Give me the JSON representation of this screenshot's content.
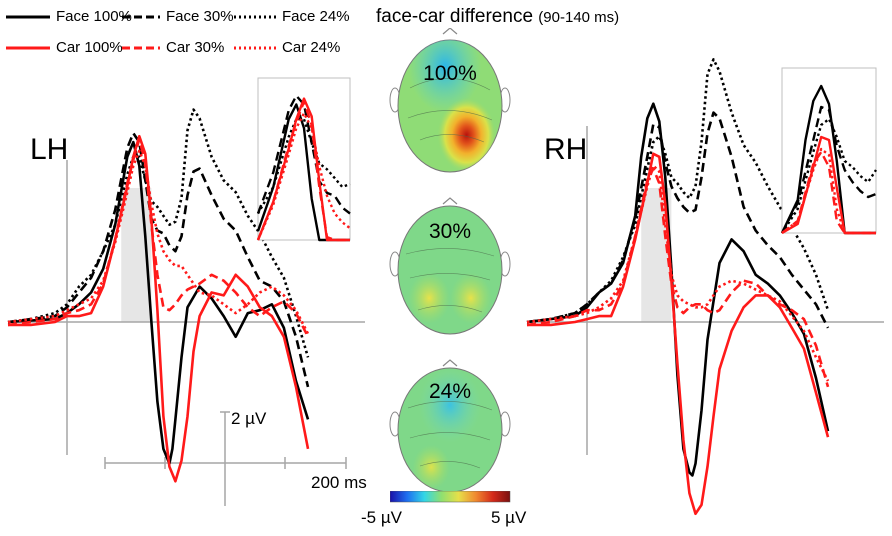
{
  "chart_data": {
    "type": "line",
    "title": "face-car difference",
    "title_window": "(90-140 ms)",
    "legend": [
      {
        "label": "Face 100%",
        "color": "#000000",
        "dash": "solid"
      },
      {
        "label": "Face 30%",
        "color": "#000000",
        "dash": "dashed"
      },
      {
        "label": "Face 24%",
        "color": "#000000",
        "dash": "dotted"
      },
      {
        "label": "Car 100%",
        "color": "#ff1a1a",
        "dash": "solid"
      },
      {
        "label": "Car 30%",
        "color": "#ff1a1a",
        "dash": "dashed"
      },
      {
        "label": "Car 24%",
        "color": "#ff1a1a",
        "dash": "dotted"
      }
    ],
    "scale_bar": {
      "amplitude_label": "2 µV",
      "time_label": "200 ms",
      "amplitude_uv": 2,
      "time_ms": 200
    },
    "x_range_ms": [
      -100,
      400
    ],
    "y_range_uv": [
      -6,
      7.4
    ],
    "highlight_window_ms": [
      90,
      140
    ],
    "panels": [
      {
        "hemisphere": "LH",
        "series": [
          {
            "name": "Face 100%",
            "x": [
              -100,
              -60,
              -20,
              0,
              20,
              40,
              60,
              80,
              100,
              110,
              120,
              130,
              140,
              150,
              160,
              170,
              175,
              180,
              190,
              200,
              220,
              240,
              260,
              280,
              300,
              320,
              340,
              360,
              380,
              400
            ],
            "y": [
              0,
              0.05,
              0.1,
              0.3,
              0.6,
              1,
              1.8,
              3.3,
              5.6,
              6.1,
              5.3,
              2.9,
              0,
              -2.7,
              -4.3,
              -4.8,
              -4.3,
              -3.3,
              -1.2,
              0.5,
              1.2,
              0.8,
              0.2,
              -0.5,
              0.3,
              0.4,
              0.6,
              -0.2,
              -2,
              -3.3
            ]
          },
          {
            "name": "Face 30%",
            "x": [
              -100,
              -60,
              -20,
              0,
              20,
              40,
              60,
              80,
              100,
              110,
              120,
              130,
              140,
              150,
              160,
              170,
              180,
              190,
              200,
              210,
              220,
              240,
              260,
              280,
              300,
              320,
              340,
              360,
              380,
              400
            ],
            "y": [
              0,
              0.1,
              0.2,
              0.5,
              1,
              1.5,
              2.4,
              3.8,
              5.9,
              6.4,
              6.1,
              4.8,
              3.5,
              3.1,
              3,
              2.6,
              2.4,
              2.9,
              4.3,
              5.1,
              5.2,
              4.3,
              3.5,
              3.1,
              2.2,
              1.4,
              1.2,
              0.7,
              -0.5,
              -2.2
            ]
          },
          {
            "name": "Face 24%",
            "x": [
              -100,
              -60,
              -20,
              0,
              20,
              40,
              60,
              80,
              100,
              110,
              120,
              130,
              140,
              150,
              160,
              170,
              180,
              190,
              200,
              210,
              220,
              240,
              260,
              280,
              300,
              320,
              340,
              360,
              380,
              400
            ],
            "y": [
              0,
              0.1,
              0.3,
              0.6,
              1.2,
              1.6,
              2.4,
              3.3,
              5,
              5.6,
              5.6,
              4.8,
              4.1,
              3.9,
              3.6,
              3.3,
              3.4,
              4.2,
              6.5,
              7.2,
              6.9,
              5.6,
              4.8,
              4.4,
              3.6,
              3,
              2.2,
              1.5,
              0.2,
              -1.2
            ]
          },
          {
            "name": "Car 100%",
            "x": [
              -100,
              -60,
              -20,
              0,
              20,
              40,
              60,
              80,
              100,
              110,
              120,
              130,
              140,
              150,
              160,
              170,
              180,
              190,
              200,
              210,
              220,
              240,
              260,
              280,
              300,
              320,
              340,
              360,
              380,
              400
            ],
            "y": [
              -0.1,
              -0.1,
              0,
              0.2,
              0.2,
              0.3,
              1.2,
              2.8,
              4.6,
              5.6,
              6.3,
              5.7,
              3.5,
              0.4,
              -3.2,
              -4.9,
              -5.4,
              -4.7,
              -3.2,
              -1,
              0.2,
              1,
              0.9,
              1.6,
              1.2,
              0.5,
              0.2,
              -0.5,
              -2.2,
              -4.3
            ]
          },
          {
            "name": "Car 30%",
            "x": [
              -100,
              -60,
              -20,
              0,
              20,
              40,
              60,
              80,
              100,
              110,
              120,
              130,
              140,
              150,
              160,
              170,
              180,
              190,
              200,
              210,
              220,
              240,
              260,
              280,
              300,
              320,
              340,
              360,
              380,
              400
            ],
            "y": [
              -0.1,
              0,
              0.1,
              0.3,
              0.4,
              0.6,
              1.3,
              2.8,
              4.7,
              5.5,
              6.2,
              5.4,
              3.3,
              1.6,
              0.5,
              0.4,
              0.6,
              0.9,
              1.1,
              1.2,
              1.3,
              1.6,
              1.4,
              1,
              0.5,
              0.2,
              0.5,
              0.7,
              0.3,
              -0.5
            ]
          },
          {
            "name": "Car 24%",
            "x": [
              -100,
              -60,
              -20,
              0,
              20,
              40,
              60,
              80,
              100,
              110,
              120,
              130,
              140,
              150,
              160,
              170,
              180,
              190,
              200,
              210,
              220,
              240,
              260,
              280,
              300,
              320,
              340,
              360,
              380,
              400
            ],
            "y": [
              0,
              0.1,
              0.2,
              0.4,
              0.6,
              0.8,
              1.4,
              2.7,
              4.4,
              5.3,
              5.8,
              5.3,
              4,
              3,
              2.4,
              2.1,
              1.9,
              1.9,
              1.6,
              1.3,
              1,
              0.9,
              0.6,
              0.3,
              0.6,
              1,
              1.2,
              0.9,
              0.4,
              -0.4
            ]
          }
        ]
      },
      {
        "hemisphere": "RH",
        "series": [
          {
            "name": "Face 100%",
            "x": [
              -100,
              -60,
              -20,
              0,
              20,
              40,
              60,
              80,
              90,
              100,
              110,
              120,
              130,
              140,
              150,
              160,
              170,
              175,
              180,
              190,
              200,
              220,
              240,
              260,
              280,
              300,
              320,
              340,
              360,
              380,
              400
            ],
            "y": [
              0,
              0.1,
              0.2,
              0.5,
              1,
              1.3,
              2,
              3.6,
              5.6,
              6.9,
              7.4,
              6.8,
              4.9,
              1.8,
              -1.8,
              -4.3,
              -5.1,
              -5.2,
              -4.8,
              -3,
              -0.6,
              2,
              2.8,
              2.4,
              1.6,
              1.3,
              0.9,
              0.3,
              -0.4,
              -1.9,
              -3.7
            ]
          },
          {
            "name": "Face 30%",
            "x": [
              -100,
              -60,
              -20,
              0,
              20,
              40,
              60,
              80,
              100,
              110,
              120,
              130,
              140,
              150,
              160,
              170,
              180,
              190,
              200,
              210,
              220,
              240,
              260,
              280,
              300,
              320,
              340,
              360,
              380,
              400
            ],
            "y": [
              0,
              0.1,
              0.3,
              0.6,
              1,
              1.3,
              2.1,
              3.5,
              5.6,
              6.7,
              6.6,
              5.4,
              4.6,
              4.2,
              3.9,
              3.7,
              3.8,
              4.9,
              6.4,
              7.1,
              6.9,
              5.6,
              3.9,
              3.1,
              2.6,
              2.2,
              1.6,
              1.1,
              0.6,
              -0.2
            ]
          },
          {
            "name": "Face 24%",
            "x": [
              -100,
              -60,
              -20,
              0,
              20,
              40,
              60,
              80,
              100,
              110,
              120,
              130,
              140,
              150,
              160,
              170,
              180,
              190,
              200,
              210,
              220,
              240,
              260,
              280,
              300,
              320,
              340,
              360,
              380,
              400
            ],
            "y": [
              0,
              0.1,
              0.3,
              0.6,
              1,
              1.4,
              2.2,
              3.3,
              5.2,
              6.1,
              6.3,
              5.7,
              4.9,
              4.7,
              4.4,
              4.2,
              4.6,
              6.1,
              8.4,
              8.9,
              8.5,
              7.1,
              6,
              5.4,
              4.6,
              3.9,
              3.2,
              2.5,
              1.6,
              0.4
            ]
          },
          {
            "name": "Car 100%",
            "x": [
              -100,
              -60,
              -20,
              0,
              20,
              40,
              60,
              80,
              100,
              110,
              120,
              130,
              140,
              150,
              160,
              170,
              180,
              190,
              200,
              210,
              220,
              240,
              260,
              280,
              300,
              320,
              340,
              360,
              380,
              400
            ],
            "y": [
              -0.1,
              -0.1,
              0,
              0.1,
              0.2,
              0.2,
              1.2,
              2.8,
              4.7,
              5.7,
              5.6,
              4,
              1.4,
              -1.4,
              -4,
              -5.8,
              -6.5,
              -6.2,
              -4.9,
              -3.2,
              -1.6,
              -0.3,
              0.5,
              0.9,
              0.9,
              0.5,
              -0.2,
              -0.9,
              -2.4,
              -3.9
            ]
          },
          {
            "name": "Car 30%",
            "x": [
              -100,
              -60,
              -20,
              0,
              20,
              40,
              60,
              80,
              100,
              110,
              120,
              130,
              140,
              150,
              160,
              170,
              180,
              190,
              200,
              210,
              220,
              240,
              260,
              280,
              300,
              320,
              340,
              360,
              380,
              400
            ],
            "y": [
              -0.1,
              0,
              0.2,
              0.4,
              0.4,
              0.6,
              1.3,
              2.9,
              4.8,
              5.2,
              4.7,
              2.9,
              1.3,
              0.5,
              0.3,
              0.5,
              0.6,
              0.6,
              0.4,
              0.3,
              0.4,
              1,
              1.4,
              1.3,
              0.9,
              0.6,
              0.4,
              0.1,
              -0.8,
              -2.2
            ]
          },
          {
            "name": "Car 24%",
            "x": [
              -100,
              -60,
              -20,
              0,
              20,
              40,
              60,
              80,
              100,
              110,
              120,
              130,
              140,
              150,
              160,
              170,
              180,
              190,
              200,
              210,
              220,
              240,
              260,
              280,
              300,
              320,
              340,
              360,
              380,
              400
            ],
            "y": [
              0,
              0.1,
              0.2,
              0.3,
              0.5,
              0.8,
              1.4,
              2.9,
              4.6,
              5.3,
              5.1,
              3.3,
              1.6,
              0.9,
              0.7,
              0.6,
              0.5,
              0.5,
              0.6,
              0.9,
              1.2,
              1.4,
              1.3,
              1.1,
              0.9,
              0.7,
              0.2,
              -0.3,
              -1.2,
              -2
            ]
          }
        ]
      }
    ],
    "topographies": [
      {
        "label": "100%"
      },
      {
        "label": "30%"
      },
      {
        "label": "24%"
      }
    ],
    "colorbar": {
      "min_label": "-5 µV",
      "max_label": "5 µV",
      "min_uv": -5,
      "max_uv": 5,
      "colors": [
        "#1a10a8",
        "#1e6ff0",
        "#33d6e6",
        "#8fe070",
        "#e6e04a",
        "#f08a30",
        "#d42a1a",
        "#7a1010"
      ]
    }
  }
}
